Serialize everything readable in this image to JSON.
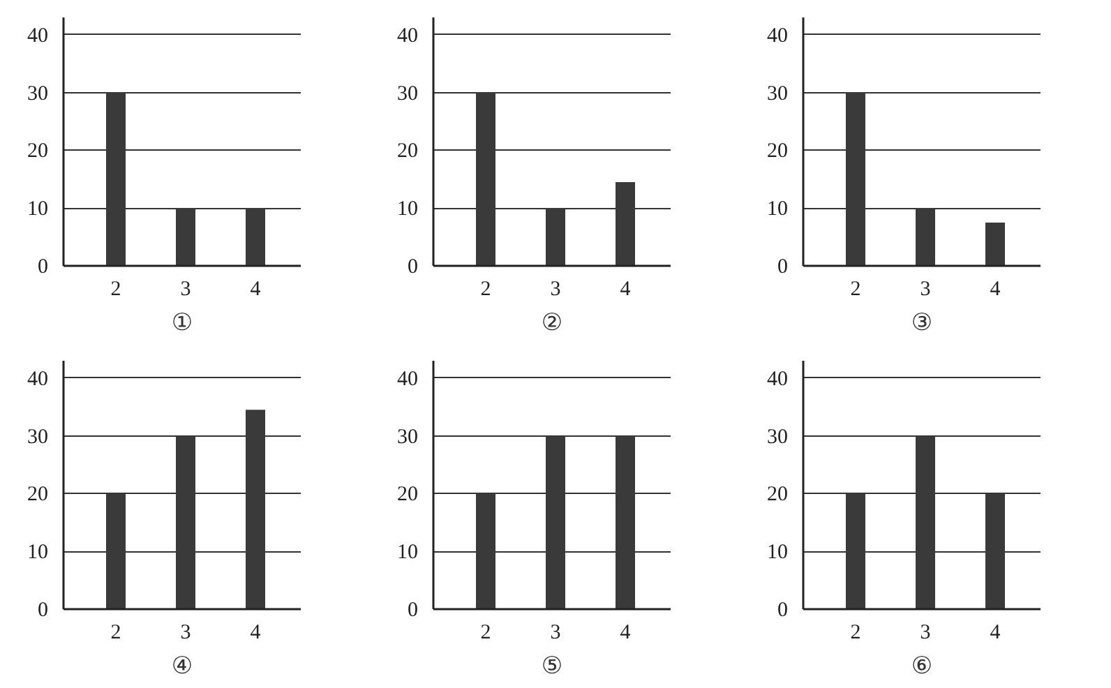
{
  "chart_data": [
    {
      "type": "bar",
      "title": "①",
      "categories": [
        "2",
        "3",
        "4"
      ],
      "values": [
        30,
        10,
        10
      ],
      "color": "#3a3a3a",
      "ylim": [
        0,
        43
      ],
      "yticks": [
        0,
        10,
        20,
        30,
        40
      ],
      "grid": "y"
    },
    {
      "type": "bar",
      "title": "②",
      "categories": [
        "2",
        "3",
        "4"
      ],
      "values": [
        30,
        10,
        14.5
      ],
      "color": "#3a3a3a",
      "ylim": [
        0,
        43
      ],
      "yticks": [
        0,
        10,
        20,
        30,
        40
      ],
      "grid": "y"
    },
    {
      "type": "bar",
      "title": "③",
      "categories": [
        "2",
        "3",
        "4"
      ],
      "values": [
        30,
        10,
        7.5
      ],
      "color": "#3a3a3a",
      "ylim": [
        0,
        43
      ],
      "yticks": [
        0,
        10,
        20,
        30,
        40
      ],
      "grid": "y"
    },
    {
      "type": "bar",
      "title": "④",
      "categories": [
        "2",
        "3",
        "4"
      ],
      "values": [
        20,
        30,
        34.5
      ],
      "color": "#3a3a3a",
      "ylim": [
        0,
        43
      ],
      "yticks": [
        0,
        10,
        20,
        30,
        40
      ],
      "grid": "y"
    },
    {
      "type": "bar",
      "title": "⑤",
      "categories": [
        "2",
        "3",
        "4"
      ],
      "values": [
        20,
        30,
        30
      ],
      "color": "#3a3a3a",
      "ylim": [
        0,
        43
      ],
      "yticks": [
        0,
        10,
        20,
        30,
        40
      ],
      "grid": "y"
    },
    {
      "type": "bar",
      "title": "⑥",
      "categories": [
        "2",
        "3",
        "4"
      ],
      "values": [
        20,
        30,
        20
      ],
      "color": "#3a3a3a",
      "ylim": [
        0,
        43
      ],
      "yticks": [
        0,
        10,
        20,
        30,
        40
      ],
      "grid": "y"
    }
  ]
}
